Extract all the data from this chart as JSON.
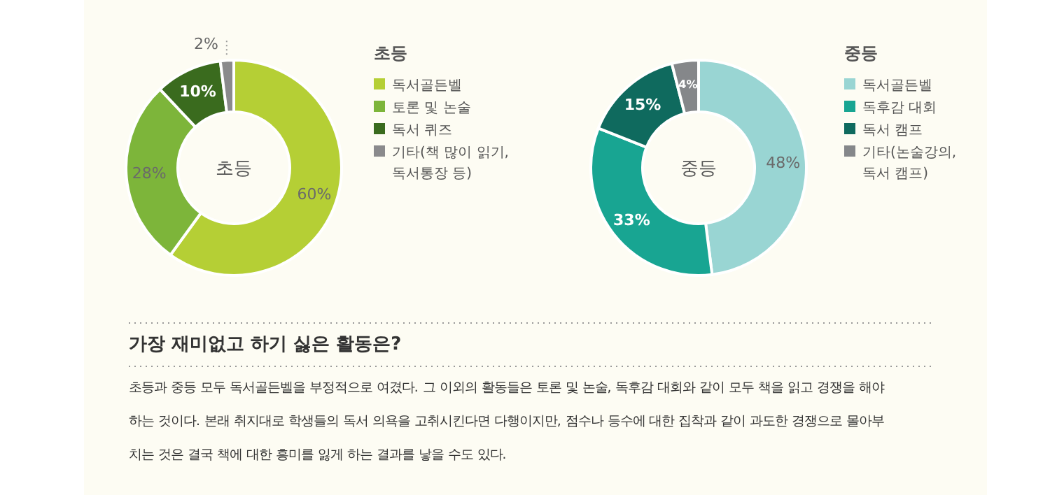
{
  "chart_data": [
    {
      "type": "donut",
      "title": "초등",
      "legend_title": "초등",
      "categories": [
        "독서골든벨",
        "토론 및 논술",
        "독서 퀴즈",
        "기타(책 많이 읽기, 독서통장 등)"
      ],
      "values": [
        60,
        28,
        10,
        2
      ],
      "colors": [
        "#b5cf35",
        "#7db53a",
        "#3a6b1e",
        "#8a8a8c"
      ],
      "value_labels": [
        "60%",
        "28%",
        "10%",
        "2%"
      ],
      "legend": "right"
    },
    {
      "type": "donut",
      "title": "중등",
      "legend_title": "중등",
      "categories": [
        "독서골든벨",
        "독후감 대회",
        "독서 캠프",
        "기타(논술강의, 독서 캠프)"
      ],
      "values": [
        48,
        33,
        15,
        4
      ],
      "colors": [
        "#99d5d3",
        "#18a592",
        "#0f6a5e",
        "#85878a"
      ],
      "value_labels": [
        "48%",
        "33%",
        "15%",
        "4%"
      ],
      "legend": "right"
    },
    {
      "type": "other",
      "title": "가장 재미없고 하기 싫은 활동은?",
      "annotations": [
        "초등과 중등 모두 독서골든벨을 부정적으로 여겼다. 그 이외의 활동들은 토론 및 논술, 독후감 대회와 같이 모두 책을 읽고 경쟁을 해야",
        "하는 것이다. 본래 취지대로 학생들의 독서 의욕을 고취시킨다면 다행이지만, 점수나 등수에 대한 집착과 같이 과도한 경쟁으로 몰아부",
        "치는 것은 결국 책에 대한 흥미를 잃게 하는 결과를 낳을 수도 있다."
      ]
    }
  ]
}
